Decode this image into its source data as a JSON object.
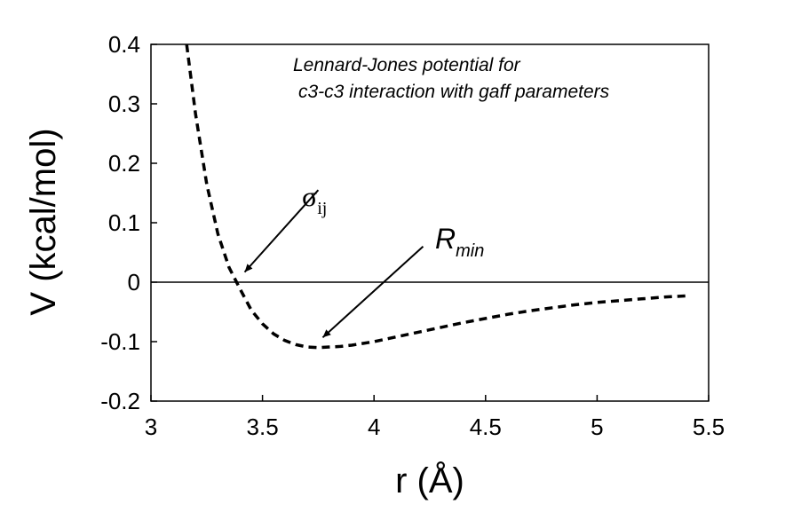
{
  "chart_data": {
    "type": "line",
    "xlabel": "r (Å)",
    "ylabel": "V (kcal/mol)",
    "xlim": [
      3,
      5.5
    ],
    "ylim": [
      -0.2,
      0.4
    ],
    "x_ticks": [
      "3",
      "3.5",
      "4",
      "4.5",
      "5",
      "5.5"
    ],
    "y_ticks": [
      "0.4",
      "0.3",
      "0.2",
      "0.1",
      "0",
      "-0.1",
      "-0.2"
    ],
    "series": [
      {
        "line_style": "dashed",
        "color": "#000000",
        "x": [
          3.16,
          3.2,
          3.25,
          3.3,
          3.35,
          3.4,
          3.45,
          3.5,
          3.55,
          3.6,
          3.65,
          3.7,
          3.75,
          3.8,
          3.85,
          3.9,
          4.0,
          4.1,
          4.2,
          4.3,
          4.4,
          4.5,
          4.6,
          4.7,
          4.8,
          4.9,
          5.0,
          5.1,
          5.2,
          5.3,
          5.4
        ],
        "y": [
          0.405,
          0.283,
          0.165,
          0.081,
          0.025,
          -0.012,
          -0.047,
          -0.07,
          -0.087,
          -0.098,
          -0.105,
          -0.109,
          -0.11,
          -0.109,
          -0.108,
          -0.106,
          -0.1,
          -0.092,
          -0.084,
          -0.076,
          -0.068,
          -0.061,
          -0.054,
          -0.048,
          -0.043,
          -0.038,
          -0.034,
          -0.031,
          -0.028,
          -0.025,
          -0.023
        ]
      }
    ],
    "zero_line": 0,
    "annotation": {
      "line1": "Lennard-Jones potential for",
      "line2": "c3-c3 interaction with gaff parameters"
    },
    "arrows": [
      {
        "label_main": "σ",
        "label_sub": "ij",
        "from": [
          3.75,
          0.155
        ],
        "to": [
          3.42,
          0.017
        ]
      },
      {
        "label_main": "R",
        "label_sub": "min",
        "from": [
          4.22,
          0.06
        ],
        "to": [
          3.77,
          -0.093
        ]
      }
    ],
    "grid": false,
    "legend": "none"
  }
}
